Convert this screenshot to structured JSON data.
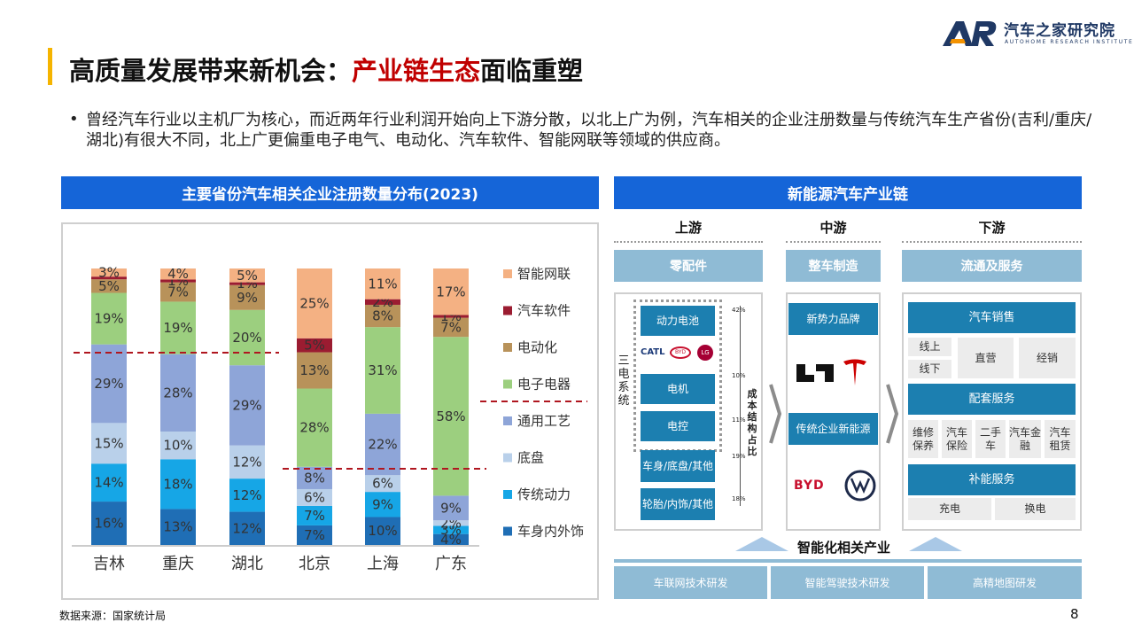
{
  "logo": {
    "cn": "汽车之家研究院",
    "en": "AUTOHOME RESEARCH INSTITUTE"
  },
  "title": {
    "prefix": "高质量发展带来新机会：",
    "highlight": "产业链生态",
    "suffix": "面临重塑"
  },
  "bullet": "•",
  "description": "曾经汽车行业以主机厂为核心，而近两年行业利润开始向上下游分散，以北上广为例，汽车相关的企业注册数量与传统汽车生产省份(吉利/重庆/湖北)有很大不同，北上广更偏重电子电气、电动化、汽车软件、智能网联等领域的供应商。",
  "left_header": "主要省份汽车相关企业注册数量分布(2023)",
  "right_header": "新能源汽车产业链",
  "footer_source": "数据来源：国家统计局",
  "page_number": "8",
  "colors": {
    "header_blue": "#1565d8",
    "title_red": "#c00000",
    "accent_yellow": "#f5b400"
  },
  "chart_data": {
    "type": "bar",
    "stacked": true,
    "percent": true,
    "categories": [
      "吉林",
      "重庆",
      "湖北",
      "北京",
      "上海",
      "广东"
    ],
    "series": [
      {
        "name": "车身内外饰",
        "color": "#1f6eb5",
        "values": [
          16,
          13,
          12,
          7,
          10,
          4
        ]
      },
      {
        "name": "传统动力",
        "color": "#16a6e6",
        "values": [
          14,
          18,
          12,
          7,
          9,
          3
        ]
      },
      {
        "name": "底盘",
        "color": "#b9d0ea",
        "values": [
          15,
          10,
          12,
          6,
          6,
          2
        ]
      },
      {
        "name": "通用工艺",
        "color": "#8ea5d8",
        "values": [
          29,
          28,
          29,
          8,
          22,
          9
        ]
      },
      {
        "name": "电子电器",
        "color": "#9ccf7f",
        "values": [
          19,
          19,
          20,
          28,
          31,
          58
        ]
      },
      {
        "name": "电动化",
        "color": "#b8925a",
        "values": [
          5,
          7,
          9,
          13,
          8,
          7
        ]
      },
      {
        "name": "汽车软件",
        "color": "#9b1c31",
        "values": [
          1,
          1,
          1,
          5,
          2,
          1
        ]
      },
      {
        "name": "智能网联",
        "color": "#f4b183",
        "values": [
          3,
          4,
          5,
          25,
          11,
          17
        ]
      }
    ],
    "labels": {
      "车身内外饰": [
        "16%",
        "13%",
        "12%",
        "7%",
        "10%",
        "4%"
      ],
      "传统动力": [
        "14%",
        "18%",
        "12%",
        "7%",
        "9%",
        "3%"
      ],
      "底盘": [
        "15%",
        "10%",
        "12%",
        "6%",
        "6%",
        "2%"
      ],
      "通用工艺": [
        "29%",
        "28%",
        "29%",
        "8%",
        "22%",
        "9%"
      ],
      "电子电器": [
        "19%",
        "19%",
        "20%",
        "28%",
        "31%",
        "58%"
      ],
      "电动化": [
        "5%",
        "7%",
        "9%",
        "13%",
        "8%",
        "7%"
      ],
      "汽车软件": [
        "",
        "1%",
        "1%",
        "5%",
        "2%",
        "1%"
      ],
      "智能网联": [
        "3%",
        "4%",
        "5%",
        "25%",
        "11%",
        "17%"
      ]
    },
    "ylim": [
      0,
      100
    ],
    "legend_position": "right",
    "annotations": "dashed red lines marking software/electrical share levels"
  },
  "chain": {
    "upstream": "上游",
    "midstream": "中游",
    "downstream": "下游",
    "parts": "零配件",
    "vehicle": "整车制造",
    "service": "流通及服务",
    "three_e": "三电系统",
    "battery": "动力电池",
    "motor": "电机",
    "control": "电控",
    "body": "车身/底盘/其他",
    "tire": "轮胎/内饰/其他",
    "cost_label": "成本结构占比",
    "pct_battery": "42%",
    "pct_motor": "10%",
    "pct_control": "11%",
    "pct_body": "19%",
    "pct_tire": "18%",
    "logos": {
      "catl": "CATL",
      "byd_small": "BYD",
      "lg": "LG"
    },
    "new_brand": "新势力品牌",
    "traditional": "传统企业新能源",
    "byd_logo": "BYD",
    "sales": "汽车销售",
    "online": "线上",
    "offline": "线下",
    "direct": "直营",
    "dealer": "经销",
    "support": "配套服务",
    "services": [
      "维修保养",
      "汽车保险",
      "二手车",
      "汽车金融",
      "汽车租赁"
    ],
    "energy": "补能服务",
    "charge": "充电",
    "swap": "换电",
    "smart": "智能化相关产业",
    "bottom": [
      "车联网技术研发",
      "智能驾驶技术研发",
      "高精地图研发"
    ]
  }
}
